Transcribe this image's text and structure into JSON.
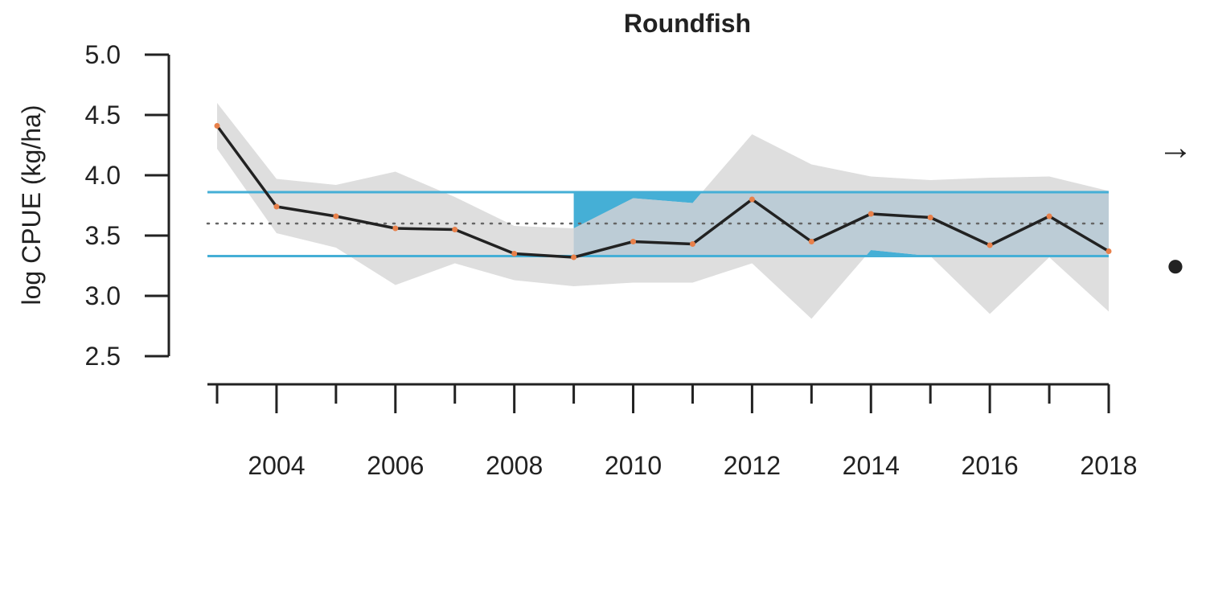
{
  "chart_data": {
    "type": "line",
    "title": "Roundfish",
    "xlabel": "",
    "ylabel": "log CPUE (kg/ha)",
    "xlim": [
      2003,
      2018
    ],
    "ylim": [
      2.5,
      5.0
    ],
    "y_ticks": [
      2.5,
      3.0,
      3.5,
      4.0,
      4.5,
      5.0
    ],
    "y_tick_labels": [
      "2.5",
      "3.0",
      "3.5",
      "4.0",
      "4.5",
      "5.0"
    ],
    "x_ticks": [
      2003,
      2004,
      2005,
      2006,
      2007,
      2008,
      2009,
      2010,
      2011,
      2012,
      2013,
      2014,
      2015,
      2016,
      2017,
      2018
    ],
    "x_tick_labels": [
      {
        "year": 2004,
        "label": "2004"
      },
      {
        "year": 2006,
        "label": "2006"
      },
      {
        "year": 2008,
        "label": "2008"
      },
      {
        "year": 2010,
        "label": "2010"
      },
      {
        "year": 2012,
        "label": "2012"
      },
      {
        "year": 2014,
        "label": "2014"
      },
      {
        "year": 2016,
        "label": "2016"
      },
      {
        "year": 2018,
        "label": "2018"
      }
    ],
    "x": [
      2003,
      2004,
      2005,
      2006,
      2007,
      2008,
      2009,
      2010,
      2011,
      2012,
      2013,
      2014,
      2015,
      2016,
      2017,
      2018
    ],
    "series": [
      {
        "values": [
          4.41,
          3.74,
          3.66,
          3.56,
          3.55,
          3.35,
          3.32,
          3.45,
          3.43,
          3.8,
          3.45,
          3.68,
          3.65,
          3.42,
          3.66,
          3.37
        ],
        "lower": [
          4.22,
          3.52,
          3.4,
          3.09,
          3.27,
          3.13,
          3.08,
          3.11,
          3.11,
          3.27,
          2.81,
          3.38,
          3.33,
          2.85,
          3.32,
          2.87
        ],
        "upper": [
          4.6,
          3.97,
          3.92,
          4.03,
          3.82,
          3.58,
          3.56,
          3.81,
          3.77,
          4.34,
          4.09,
          3.99,
          3.96,
          3.98,
          3.99,
          3.87
        ]
      }
    ],
    "reference_band": {
      "from": 2003,
      "to": 2018,
      "lower": 3.33,
      "upper": 3.86,
      "mean": 3.6
    },
    "recent_period_start": 2009,
    "trend_symbol": "→",
    "status_symbol": "●",
    "colors": {
      "line": "#222222",
      "points": "#e8804a",
      "confidence": "#dedede",
      "band_line": "#45afd6",
      "band_fill": "#45afd6",
      "overlap_fill": "#bcccd6",
      "mean_line": "#666666",
      "axis": "#222222"
    },
    "grid": false,
    "legend": "none"
  }
}
